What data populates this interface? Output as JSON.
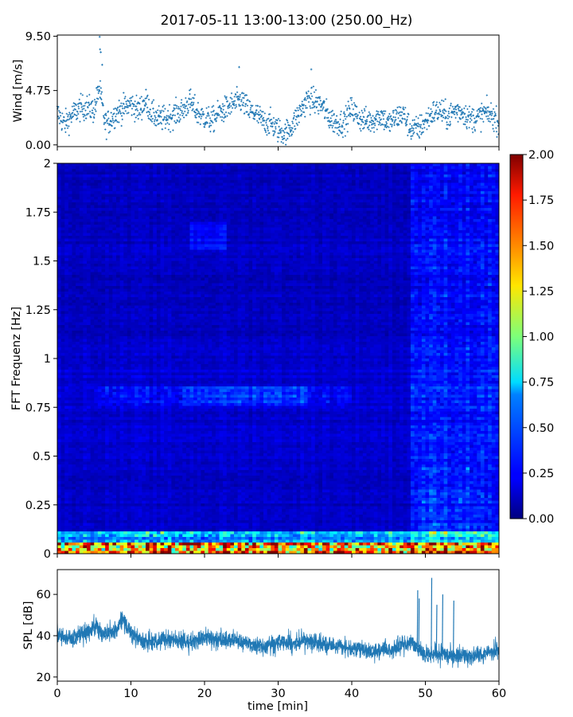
{
  "title": "2017-05-11 13:00-13:00 (250.00_Hz)",
  "colors": {
    "series": "#1f77b4",
    "axis": "#000000"
  },
  "chart_data": [
    {
      "name": "wind",
      "type": "scatter",
      "ylabel": "Wind [m/s]",
      "xlim": [
        0,
        60
      ],
      "ylim": [
        -0.15,
        9.6
      ],
      "yticks": [
        0.0,
        4.75,
        9.5
      ],
      "ytick_labels": [
        "0.00",
        "4.75",
        "9.50"
      ],
      "xticks": [
        0,
        10,
        20,
        30,
        40,
        50,
        60
      ],
      "xtick_labels_shown": false,
      "trend": {
        "x": [
          0,
          1,
          2,
          3,
          4,
          5,
          5.7,
          6.5,
          7,
          8,
          9,
          10,
          11,
          12,
          13,
          14,
          15,
          16,
          17,
          18,
          19,
          20,
          21,
          22,
          23,
          24,
          25,
          26,
          27,
          28,
          29,
          30,
          31,
          32,
          33,
          34,
          35,
          36,
          37,
          38,
          39,
          40,
          41,
          42,
          43,
          44,
          45,
          46,
          47,
          48,
          49,
          50,
          51,
          52,
          53,
          54,
          55,
          56,
          57,
          58,
          59,
          60
        ],
        "y": [
          2.8,
          1.8,
          2.6,
          3.2,
          3.3,
          3.0,
          5.0,
          1.8,
          2.0,
          2.8,
          3.2,
          3.6,
          3.0,
          3.8,
          2.6,
          2.2,
          2.4,
          2.7,
          3.0,
          3.8,
          2.8,
          2.4,
          2.1,
          2.8,
          3.2,
          3.6,
          3.9,
          3.0,
          2.7,
          2.0,
          1.9,
          1.3,
          1.0,
          1.8,
          2.9,
          4.0,
          3.8,
          3.4,
          2.3,
          1.9,
          2.0,
          3.2,
          2.3,
          2.1,
          2.2,
          2.6,
          1.8,
          2.4,
          2.7,
          1.4,
          1.4,
          2.0,
          2.8,
          3.0,
          2.4,
          3.0,
          2.9,
          2.3,
          2.3,
          2.8,
          2.6,
          1.9
        ]
      },
      "peaks": {
        "x": [
          5.75,
          5.8,
          5.9,
          6.1,
          24.7,
          34.5
        ],
        "y": [
          9.45,
          8.35,
          8.1,
          7.0,
          6.8,
          6.6
        ]
      }
    },
    {
      "name": "spectrogram",
      "type": "heatmap",
      "ylabel": "FFT Frequenz [Hz]",
      "xlim": [
        0,
        60
      ],
      "ylim": [
        0,
        2
      ],
      "yticks": [
        0,
        0.25,
        0.5,
        0.75,
        1,
        1.25,
        1.5,
        1.75,
        2
      ],
      "ytick_labels": [
        "0",
        "0.25",
        "0.5",
        "0.75",
        "1",
        "1.25",
        "1.5",
        "1.75",
        "2"
      ],
      "xticks": [
        0,
        10,
        20,
        30,
        40,
        50,
        60
      ],
      "colormap": "jet",
      "colorbar": {
        "vmin": 0,
        "vmax": 2,
        "ticks": [
          0.0,
          0.25,
          0.5,
          0.75,
          1.0,
          1.25,
          1.5,
          1.75,
          2.0
        ],
        "tick_labels": [
          "0.00",
          "0.25",
          "0.50",
          "0.75",
          "1.00",
          "1.25",
          "1.50",
          "1.75",
          "2.00"
        ]
      },
      "features": [
        {
          "label": "strong low-frequency band",
          "freq_range": [
            0,
            0.06
          ],
          "level": 1.6
        },
        {
          "label": "elevated band",
          "freq_range": [
            0.75,
            0.85
          ],
          "x_range": [
            5,
            40
          ],
          "level": 0.65
        },
        {
          "label": "elevated band",
          "freq_range": [
            1.55,
            1.7
          ],
          "x_range": [
            18,
            23
          ],
          "level": 0.6
        },
        {
          "label": "broadband increase",
          "x_range": [
            48,
            60
          ],
          "level": 0.5
        }
      ]
    },
    {
      "name": "spl",
      "type": "line",
      "ylabel": "SPL [dB]",
      "xlabel": "time [min]",
      "xlim": [
        0,
        60
      ],
      "ylim": [
        18,
        72
      ],
      "yticks": [
        20,
        40,
        60
      ],
      "ytick_labels": [
        "20",
        "40",
        "60"
      ],
      "xticks": [
        0,
        10,
        20,
        30,
        40,
        50,
        60
      ],
      "xtick_labels": [
        "0",
        "10",
        "20",
        "30",
        "40",
        "50",
        "60"
      ],
      "trend": {
        "x": [
          0,
          2,
          4,
          5.5,
          6,
          8,
          9,
          10,
          12,
          14,
          16,
          18,
          20,
          22,
          24,
          26,
          28,
          30,
          32,
          34,
          36,
          38,
          40,
          42,
          44,
          46,
          48,
          49,
          50,
          52,
          54,
          56,
          58,
          60
        ],
        "y": [
          40,
          38,
          42,
          45,
          40,
          43,
          48,
          41,
          37,
          38,
          38,
          37,
          39,
          38,
          38,
          36,
          35,
          37,
          36,
          38,
          36,
          35,
          34,
          33,
          33,
          34,
          37,
          34,
          31,
          31,
          30,
          30,
          31,
          33
        ]
      },
      "spikes": {
        "x": [
          48.9,
          49.1,
          50.8,
          51.5,
          52.3,
          53.8
        ],
        "y": [
          62,
          58,
          68,
          55,
          60,
          57
        ]
      }
    }
  ]
}
